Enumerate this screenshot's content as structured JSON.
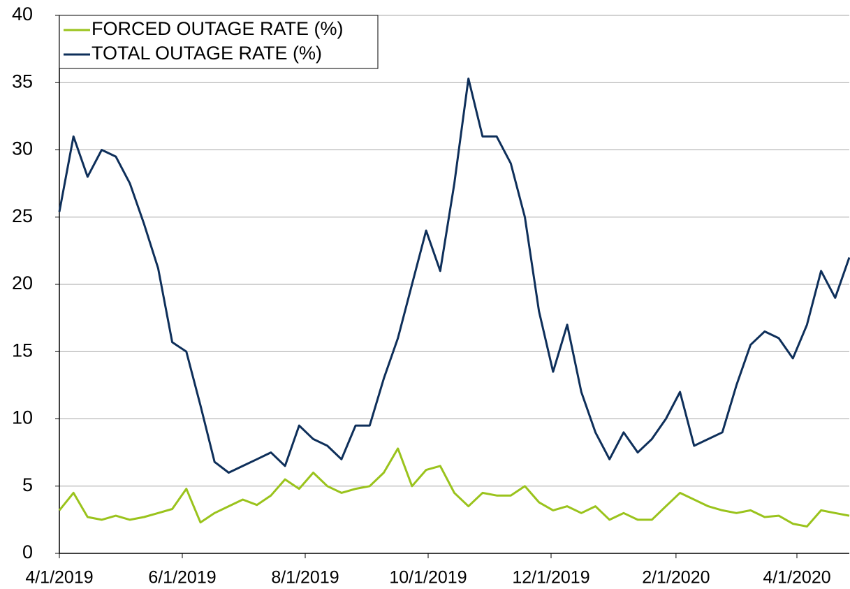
{
  "chart_data": {
    "type": "line",
    "x": [
      "4/1/2019",
      "4/8/2019",
      "4/15/2019",
      "4/22/2019",
      "4/29/2019",
      "5/6/2019",
      "5/13/2019",
      "5/20/2019",
      "5/27/2019",
      "6/3/2019",
      "6/10/2019",
      "6/17/2019",
      "6/24/2019",
      "7/1/2019",
      "7/8/2019",
      "7/15/2019",
      "7/22/2019",
      "7/29/2019",
      "8/5/2019",
      "8/12/2019",
      "8/19/2019",
      "8/26/2019",
      "9/2/2019",
      "9/9/2019",
      "9/16/2019",
      "9/23/2019",
      "9/30/2019",
      "10/7/2019",
      "10/14/2019",
      "10/21/2019",
      "10/28/2019",
      "11/4/2019",
      "11/11/2019",
      "11/18/2019",
      "11/25/2019",
      "12/2/2019",
      "12/9/2019",
      "12/16/2019",
      "12/23/2019",
      "12/30/2019",
      "1/6/2020",
      "1/13/2020",
      "1/20/2020",
      "1/27/2020",
      "2/3/2020",
      "2/10/2020",
      "2/17/2020",
      "2/24/2020",
      "3/2/2020",
      "3/9/2020",
      "3/16/2020",
      "3/23/2020",
      "3/30/2020",
      "4/6/2020",
      "4/13/2020",
      "4/20/2020",
      "4/27/2020"
    ],
    "series": [
      {
        "name": "FORCED OUTAGE RATE (%)",
        "color": "#9ac31c",
        "values": [
          3.2,
          4.5,
          2.7,
          2.5,
          2.8,
          2.5,
          2.7,
          3,
          3.3,
          4.8,
          2.3,
          3,
          3.5,
          4,
          3.6,
          4.3,
          5.5,
          4.8,
          6,
          5,
          4.5,
          4.8,
          5,
          6,
          7.8,
          5,
          6.2,
          6.5,
          4.5,
          3.5,
          4.5,
          4.3,
          4.3,
          5,
          3.8,
          3.2,
          3.5,
          3,
          3.5,
          2.5,
          3,
          2.5,
          2.5,
          3.5,
          4.5,
          4,
          3.5,
          3.2,
          3,
          3.2,
          2.7,
          2.8,
          2.2,
          2,
          3.2,
          3,
          2.8
        ]
      },
      {
        "name": "TOTAL OUTAGE RATE (%)",
        "color": "#0e2f5a",
        "values": [
          25.4,
          31,
          28,
          30,
          29.5,
          27.5,
          24.5,
          21.2,
          15.7,
          15,
          11,
          6.8,
          6,
          6.5,
          7,
          7.5,
          6.5,
          9.5,
          8.5,
          8,
          7,
          9.5,
          9.5,
          13,
          16,
          20,
          24,
          21,
          27.5,
          35.3,
          31,
          31,
          29,
          25,
          18,
          13.5,
          17,
          12,
          9,
          7,
          9,
          7.5,
          8.5,
          10,
          12,
          8,
          8.5,
          9,
          12.5,
          15.5,
          16.5,
          16,
          14.5,
          17,
          21,
          19,
          22
        ]
      }
    ],
    "xlim": [
      "4/1/2019",
      "4/27/2020"
    ],
    "xticks": [
      "4/1/2019",
      "6/1/2019",
      "8/1/2019",
      "10/1/2019",
      "12/1/2019",
      "2/1/2020",
      "4/1/2020"
    ],
    "ylim": [
      0,
      40
    ],
    "yticks": [
      0,
      5,
      10,
      15,
      20,
      25,
      30,
      35,
      40
    ],
    "grid": true,
    "legend": "upper left"
  }
}
